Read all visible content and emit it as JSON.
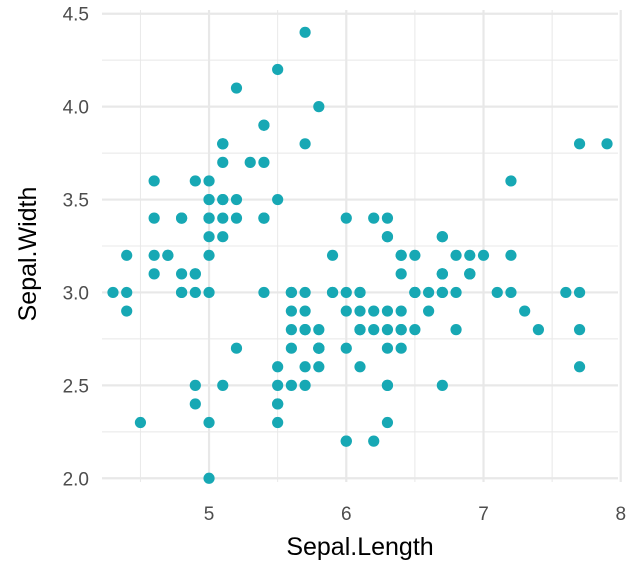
{
  "chart_data": {
    "type": "scatter",
    "title": "",
    "xlabel": "Sepal.Length",
    "ylabel": "Sepal.Width",
    "xlim": [
      4.22,
      7.98
    ],
    "ylim": [
      1.98,
      4.52
    ],
    "x_ticks": [
      5,
      6,
      7,
      8
    ],
    "x_tick_labels": [
      "5",
      "6",
      "7",
      "8"
    ],
    "x_minor_ticks": [
      4.5,
      5.5,
      6.5,
      7.5
    ],
    "y_ticks": [
      2.0,
      2.5,
      3.0,
      3.5,
      4.0,
      4.5
    ],
    "y_tick_labels": [
      "2.0",
      "2.5",
      "3.0",
      "3.5",
      "4.0",
      "4.5"
    ],
    "y_minor_ticks": [
      2.25,
      2.75,
      3.25,
      3.75,
      4.25
    ],
    "grid": true,
    "point_color": "#17A8B4",
    "grid_color": "#E8E8E8",
    "series": [
      {
        "points": [
          [
            5.1,
            3.5
          ],
          [
            4.9,
            3.0
          ],
          [
            4.7,
            3.2
          ],
          [
            4.6,
            3.1
          ],
          [
            5.0,
            3.6
          ],
          [
            5.4,
            3.9
          ],
          [
            4.6,
            3.4
          ],
          [
            5.0,
            3.4
          ],
          [
            4.4,
            2.9
          ],
          [
            4.9,
            3.1
          ],
          [
            5.4,
            3.7
          ],
          [
            4.8,
            3.4
          ],
          [
            4.8,
            3.0
          ],
          [
            4.3,
            3.0
          ],
          [
            5.8,
            4.0
          ],
          [
            5.7,
            4.4
          ],
          [
            5.4,
            3.9
          ],
          [
            5.1,
            3.5
          ],
          [
            5.7,
            3.8
          ],
          [
            5.1,
            3.8
          ],
          [
            5.4,
            3.4
          ],
          [
            5.1,
            3.7
          ],
          [
            4.6,
            3.6
          ],
          [
            5.1,
            3.3
          ],
          [
            4.8,
            3.4
          ],
          [
            5.0,
            3.0
          ],
          [
            5.0,
            3.4
          ],
          [
            5.2,
            3.5
          ],
          [
            5.2,
            3.4
          ],
          [
            4.7,
            3.2
          ],
          [
            4.8,
            3.1
          ],
          [
            5.4,
            3.4
          ],
          [
            5.2,
            4.1
          ],
          [
            5.5,
            4.2
          ],
          [
            4.9,
            3.1
          ],
          [
            5.0,
            3.2
          ],
          [
            5.5,
            3.5
          ],
          [
            4.9,
            3.6
          ],
          [
            4.4,
            3.0
          ],
          [
            5.1,
            3.4
          ],
          [
            5.0,
            3.5
          ],
          [
            4.5,
            2.3
          ],
          [
            4.4,
            3.2
          ],
          [
            5.0,
            3.5
          ],
          [
            5.1,
            3.8
          ],
          [
            4.8,
            3.0
          ],
          [
            5.1,
            3.8
          ],
          [
            4.6,
            3.2
          ],
          [
            5.3,
            3.7
          ],
          [
            5.0,
            3.3
          ],
          [
            7.0,
            3.2
          ],
          [
            6.4,
            3.2
          ],
          [
            6.9,
            3.1
          ],
          [
            5.5,
            2.3
          ],
          [
            6.5,
            2.8
          ],
          [
            5.7,
            2.8
          ],
          [
            6.3,
            3.3
          ],
          [
            4.9,
            2.4
          ],
          [
            6.6,
            2.9
          ],
          [
            5.2,
            2.7
          ],
          [
            5.0,
            2.0
          ],
          [
            5.9,
            3.0
          ],
          [
            6.0,
            2.2
          ],
          [
            6.1,
            2.9
          ],
          [
            5.6,
            2.9
          ],
          [
            6.7,
            3.1
          ],
          [
            5.6,
            3.0
          ],
          [
            5.8,
            2.7
          ],
          [
            6.2,
            2.2
          ],
          [
            5.6,
            2.5
          ],
          [
            5.9,
            3.2
          ],
          [
            6.1,
            2.8
          ],
          [
            6.3,
            2.5
          ],
          [
            6.1,
            2.8
          ],
          [
            6.4,
            2.9
          ],
          [
            6.6,
            3.0
          ],
          [
            6.8,
            2.8
          ],
          [
            6.7,
            3.0
          ],
          [
            6.0,
            2.9
          ],
          [
            5.7,
            2.6
          ],
          [
            5.5,
            2.4
          ],
          [
            5.5,
            2.4
          ],
          [
            5.8,
            2.7
          ],
          [
            6.0,
            2.7
          ],
          [
            5.4,
            3.0
          ],
          [
            6.0,
            3.4
          ],
          [
            6.7,
            3.1
          ],
          [
            6.3,
            2.3
          ],
          [
            5.6,
            3.0
          ],
          [
            5.5,
            2.5
          ],
          [
            5.5,
            2.6
          ],
          [
            6.1,
            3.0
          ],
          [
            5.8,
            2.6
          ],
          [
            5.0,
            2.3
          ],
          [
            5.6,
            2.7
          ],
          [
            5.7,
            3.0
          ],
          [
            5.7,
            2.9
          ],
          [
            6.2,
            2.9
          ],
          [
            5.1,
            2.5
          ],
          [
            5.7,
            2.8
          ],
          [
            6.3,
            3.3
          ],
          [
            5.8,
            2.7
          ],
          [
            7.1,
            3.0
          ],
          [
            6.3,
            2.9
          ],
          [
            6.5,
            3.0
          ],
          [
            7.6,
            3.0
          ],
          [
            4.9,
            2.5
          ],
          [
            7.3,
            2.9
          ],
          [
            6.7,
            2.5
          ],
          [
            7.2,
            3.6
          ],
          [
            6.5,
            3.2
          ],
          [
            6.4,
            2.7
          ],
          [
            6.8,
            3.0
          ],
          [
            5.7,
            2.5
          ],
          [
            5.8,
            2.8
          ],
          [
            6.4,
            3.2
          ],
          [
            6.5,
            3.0
          ],
          [
            7.7,
            3.8
          ],
          [
            7.7,
            2.6
          ],
          [
            6.0,
            2.2
          ],
          [
            6.9,
            3.2
          ],
          [
            5.6,
            2.8
          ],
          [
            7.7,
            2.8
          ],
          [
            6.3,
            2.7
          ],
          [
            6.7,
            3.3
          ],
          [
            7.2,
            3.2
          ],
          [
            6.2,
            2.8
          ],
          [
            6.1,
            3.0
          ],
          [
            6.4,
            2.8
          ],
          [
            7.2,
            3.0
          ],
          [
            7.4,
            2.8
          ],
          [
            7.9,
            3.8
          ],
          [
            6.4,
            2.8
          ],
          [
            6.3,
            2.8
          ],
          [
            6.1,
            2.6
          ],
          [
            7.7,
            3.0
          ],
          [
            6.3,
            3.4
          ],
          [
            6.4,
            3.1
          ],
          [
            6.0,
            3.0
          ],
          [
            6.9,
            3.1
          ],
          [
            6.7,
            3.1
          ],
          [
            6.9,
            3.1
          ],
          [
            5.8,
            2.7
          ],
          [
            6.8,
            3.2
          ],
          [
            6.7,
            3.3
          ],
          [
            6.7,
            3.0
          ],
          [
            6.3,
            2.5
          ],
          [
            6.5,
            3.0
          ],
          [
            6.2,
            3.4
          ],
          [
            5.9,
            3.0
          ]
        ]
      }
    ]
  }
}
